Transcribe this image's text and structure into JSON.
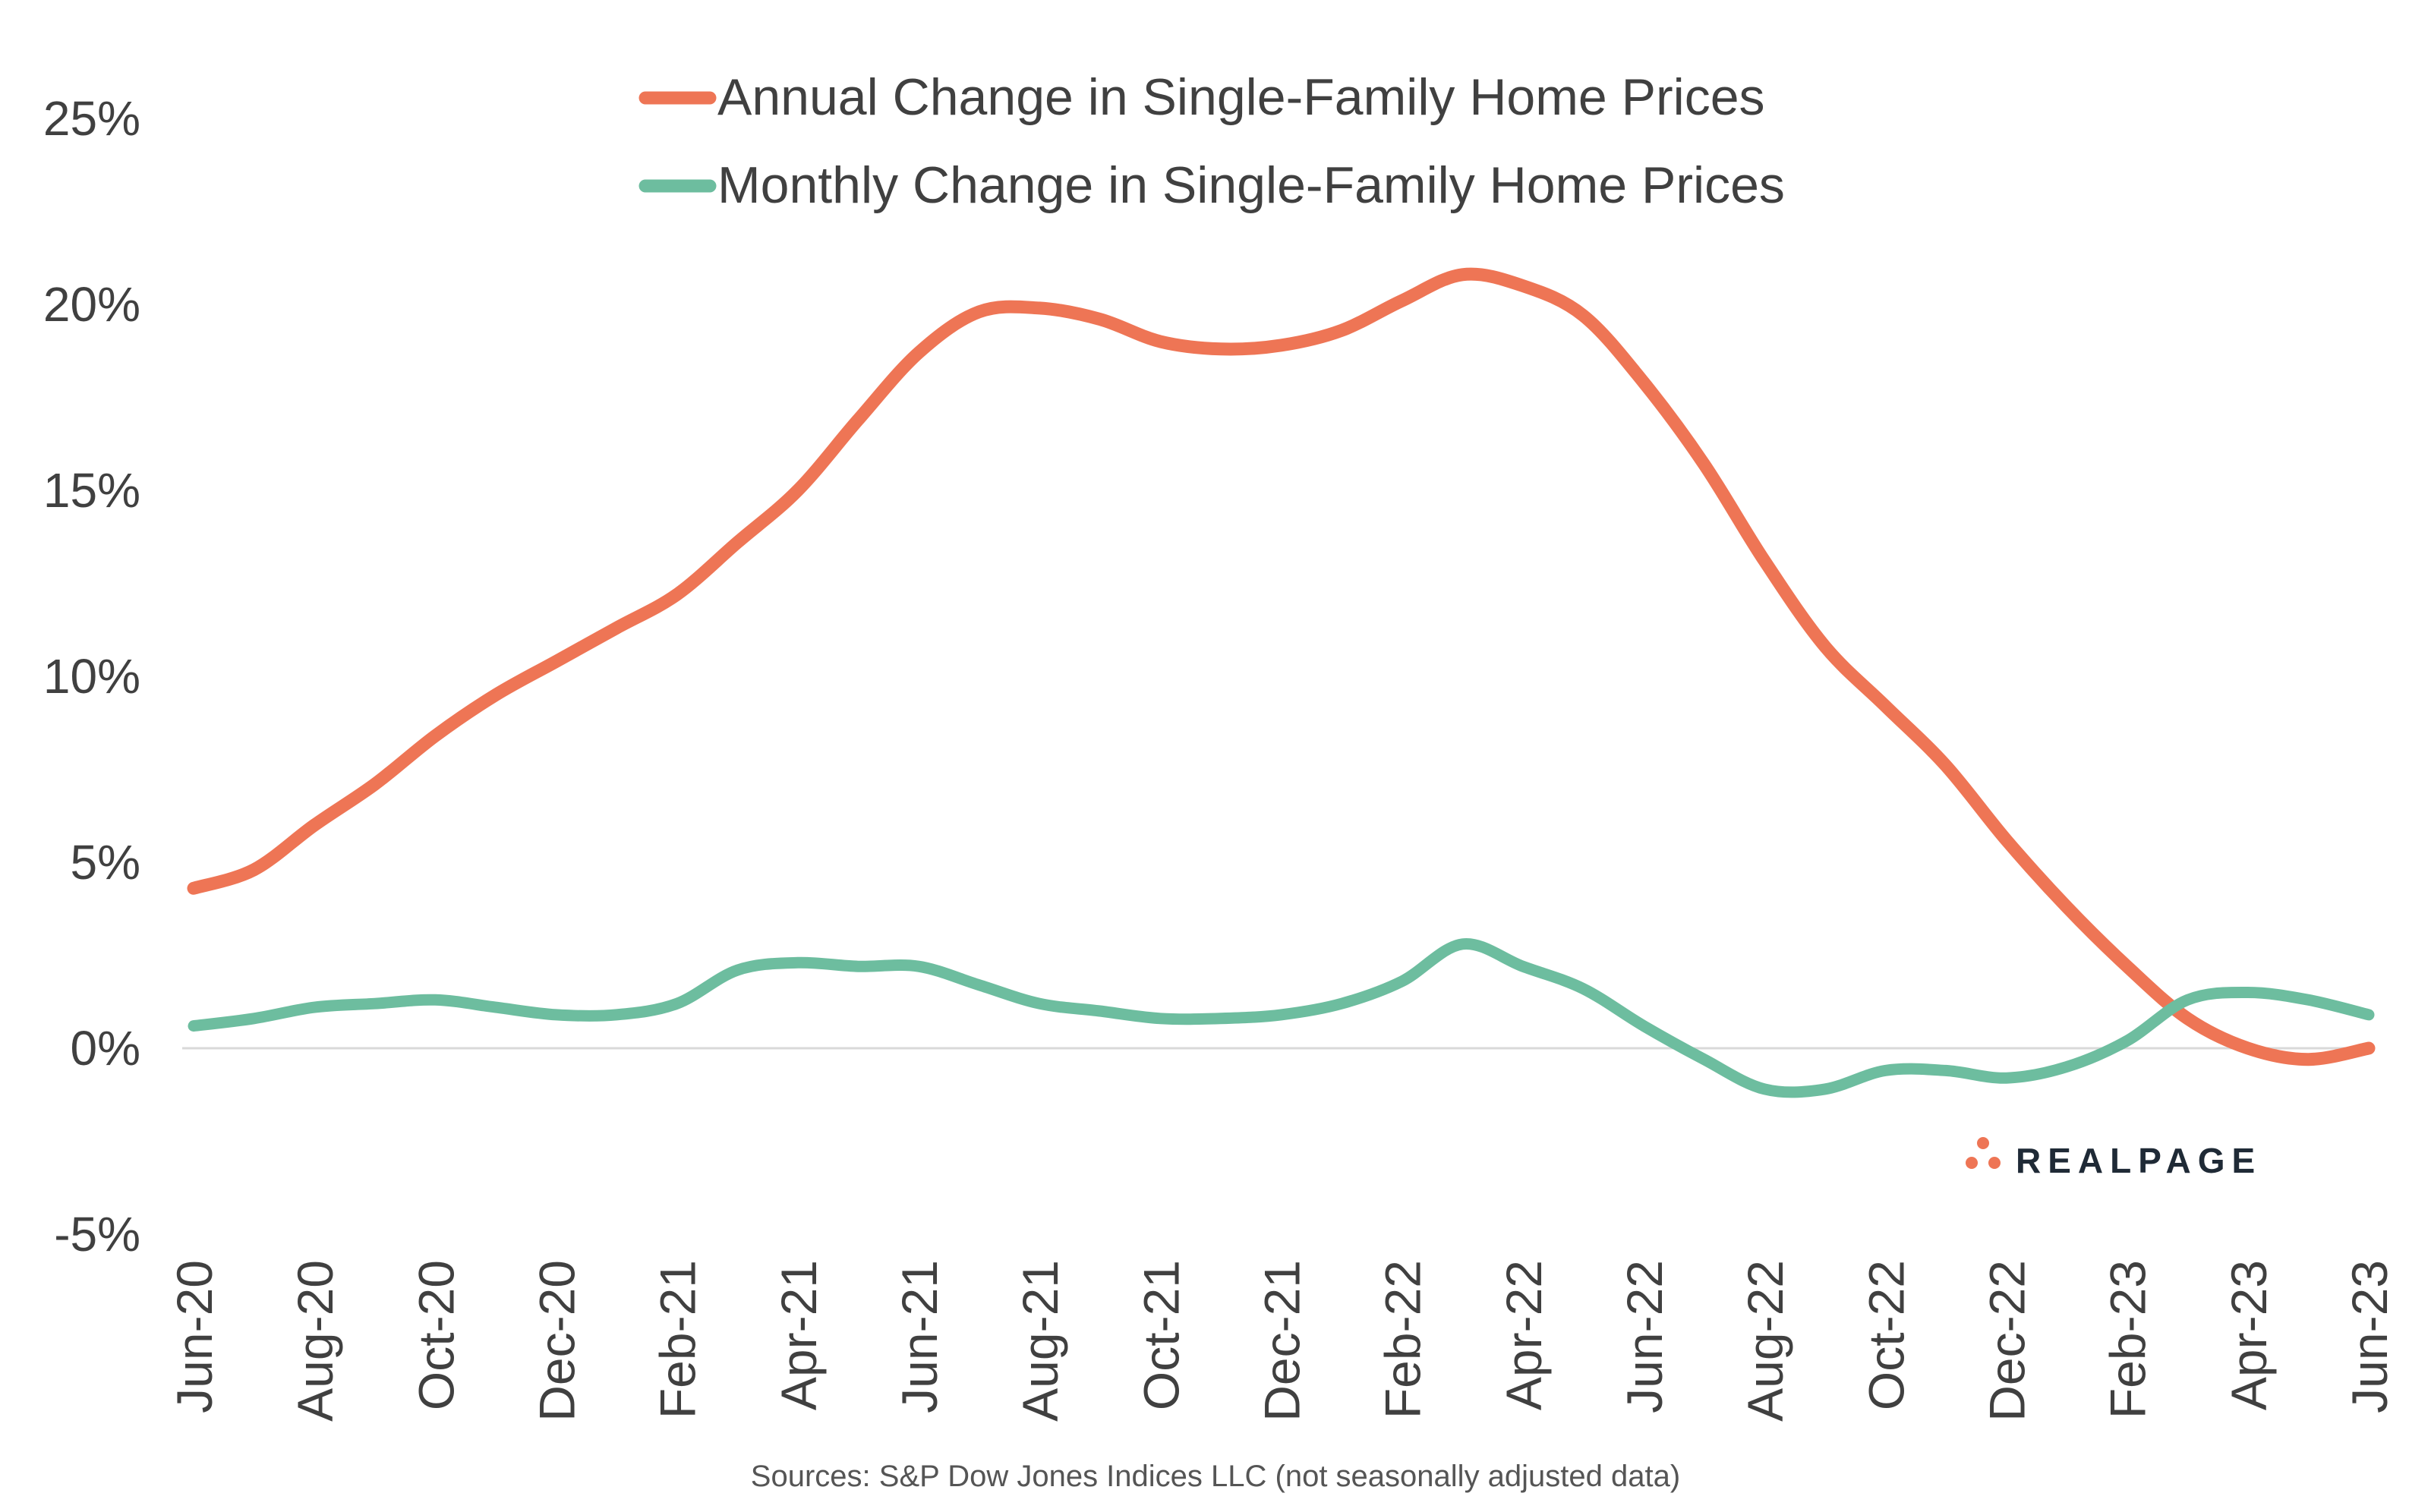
{
  "chart_data": {
    "type": "line",
    "title": "",
    "xlabel": "",
    "ylabel": "",
    "ylim": [
      -5,
      25
    ],
    "y_ticks": [
      "25%",
      "20%",
      "15%",
      "10%",
      "5%",
      "0%",
      "-5%"
    ],
    "y_tick_values": [
      25,
      20,
      15,
      10,
      5,
      0,
      -5
    ],
    "x_tick_labels": [
      "Jun-20",
      "Aug-20",
      "Oct-20",
      "Dec-20",
      "Feb-21",
      "Apr-21",
      "Jun-21",
      "Aug-21",
      "Oct-21",
      "Dec-21",
      "Feb-22",
      "Apr-22",
      "Jun-22",
      "Aug-22",
      "Oct-22",
      "Dec-22",
      "Feb-23",
      "Apr-23",
      "Jun-23"
    ],
    "categories": [
      "Jun-20",
      "Jul-20",
      "Aug-20",
      "Sep-20",
      "Oct-20",
      "Nov-20",
      "Dec-20",
      "Jan-21",
      "Feb-21",
      "Mar-21",
      "Apr-21",
      "May-21",
      "Jun-21",
      "Jul-21",
      "Aug-21",
      "Sep-21",
      "Oct-21",
      "Nov-21",
      "Dec-21",
      "Jan-22",
      "Feb-22",
      "Mar-22",
      "Apr-22",
      "May-22",
      "Jun-22",
      "Jul-22",
      "Aug-22",
      "Sep-22",
      "Oct-22",
      "Nov-22",
      "Dec-22",
      "Jan-23",
      "Feb-23",
      "Mar-23",
      "Apr-23",
      "May-23",
      "Jun-23"
    ],
    "series": [
      {
        "name": "Annual Change in Single-Family Home Prices",
        "color": "#EE7555",
        "values": [
          4.3,
          4.8,
          6.0,
          7.1,
          8.4,
          9.5,
          10.4,
          11.3,
          12.2,
          13.6,
          15.0,
          16.9,
          18.7,
          19.8,
          19.9,
          19.6,
          19.0,
          18.8,
          18.9,
          19.3,
          20.1,
          20.8,
          20.5,
          19.7,
          17.9,
          15.7,
          13.1,
          10.8,
          9.2,
          7.6,
          5.6,
          3.8,
          2.2,
          0.8,
          0.0,
          -0.3,
          0.0
        ]
      },
      {
        "name": "Monthly Change in Single-Family Home Prices",
        "color": "#6DBD9F",
        "values": [
          0.6,
          0.8,
          1.1,
          1.2,
          1.3,
          1.1,
          0.9,
          0.9,
          1.2,
          2.1,
          2.3,
          2.2,
          2.2,
          1.7,
          1.2,
          1.0,
          0.8,
          0.8,
          0.9,
          1.2,
          1.8,
          2.8,
          2.2,
          1.6,
          0.6,
          -0.3,
          -1.1,
          -1.1,
          -0.6,
          -0.6,
          -0.8,
          -0.5,
          0.2,
          1.3,
          1.5,
          1.3,
          0.9
        ]
      }
    ],
    "legend_position": "top-center",
    "grid": false
  },
  "source_note": "Sources: S&P Dow Jones Indices LLC (not seasonally adjusted data)",
  "logo": {
    "text": "REALPAGE",
    "color": "#EE7555"
  }
}
